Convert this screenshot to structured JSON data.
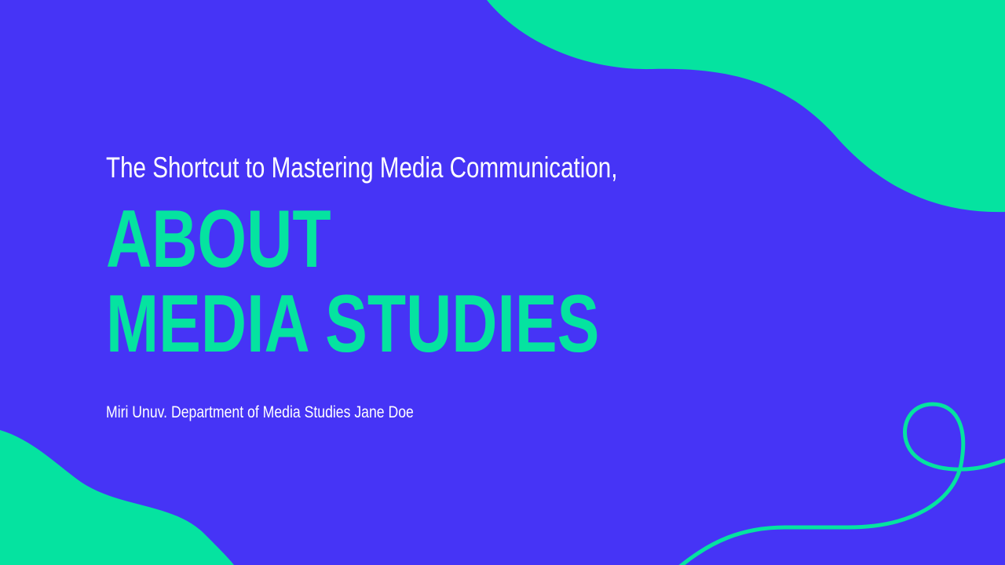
{
  "slide": {
    "subtitle": "The Shortcut to Mastering Media Communication,",
    "title_line1": "ABOUT",
    "title_line2": "MEDIA STUDIES",
    "author": "Miri Unuv. Department of Media Studies Jane Doe"
  },
  "colors": {
    "background": "#4634F6",
    "accent": "#05E3A0",
    "text": "#FFFFFF"
  }
}
